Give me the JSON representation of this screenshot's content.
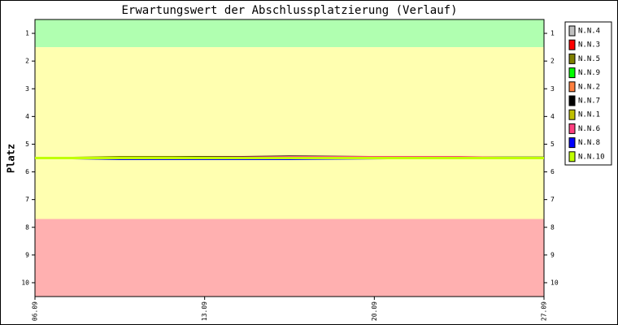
{
  "chart_data": {
    "type": "line",
    "title": "Erwartungswert der Abschlussplatzierung (Verlauf)",
    "y_label": "Platz",
    "ylim": [
      0.5,
      10.5
    ],
    "y_inverted": true,
    "yticks": [
      1,
      2,
      3,
      4,
      5,
      6,
      7,
      8,
      9,
      10
    ],
    "xlim": [
      6,
      27
    ],
    "xticks": [
      {
        "value": 6,
        "label": "06.09"
      },
      {
        "value": 13,
        "label": "13.09"
      },
      {
        "value": 20,
        "label": "20.09"
      },
      {
        "value": 27,
        "label": "27.09"
      }
    ],
    "bands": [
      {
        "from": 0.5,
        "to": 1.5,
        "color": "#b0ffb0"
      },
      {
        "from": 1.5,
        "to": 7.7,
        "color": "#ffffb0"
      },
      {
        "from": 7.7,
        "to": 10.5,
        "color": "#ffb0b0"
      }
    ],
    "legend": "right",
    "x": [
      6,
      9.5,
      16.5,
      23.5,
      27
    ],
    "series": [
      {
        "name": "N.N.4",
        "color": "#c0c0c0",
        "values": [
          5.5,
          5.5,
          5.5,
          5.5,
          5.5
        ]
      },
      {
        "name": "N.N.3",
        "color": "#ff0000",
        "values": [
          5.5,
          5.5,
          5.5,
          5.5,
          5.5
        ]
      },
      {
        "name": "N.N.5",
        "color": "#808000",
        "values": [
          5.5,
          5.45,
          5.45,
          5.5,
          5.5
        ]
      },
      {
        "name": "N.N.9",
        "color": "#00ff00",
        "values": [
          5.5,
          5.5,
          5.5,
          5.5,
          5.5
        ]
      },
      {
        "name": "N.N.2",
        "color": "#ff8040",
        "values": [
          5.5,
          5.5,
          5.5,
          5.5,
          5.5
        ]
      },
      {
        "name": "N.N.7",
        "color": "#000000",
        "values": [
          5.5,
          5.5,
          5.43,
          5.47,
          5.47
        ]
      },
      {
        "name": "N.N.1",
        "color": "#c0c000",
        "values": [
          5.5,
          5.5,
          5.5,
          5.5,
          5.5
        ]
      },
      {
        "name": "N.N.6",
        "color": "#ff4080",
        "values": [
          5.5,
          5.5,
          5.45,
          5.45,
          5.5
        ]
      },
      {
        "name": "N.N.8",
        "color": "#0000ff",
        "values": [
          5.5,
          5.55,
          5.55,
          5.5,
          5.5
        ]
      },
      {
        "name": "N.N.10",
        "color": "#c0ff00",
        "values": [
          5.5,
          5.5,
          5.5,
          5.5,
          5.5
        ]
      }
    ]
  }
}
